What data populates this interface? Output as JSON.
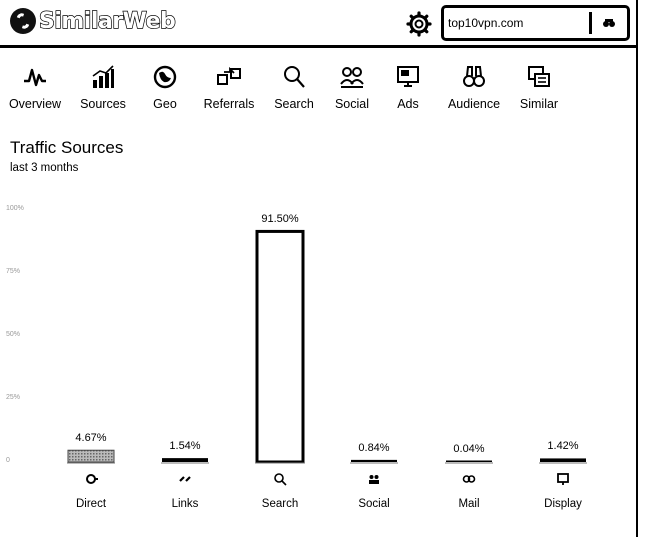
{
  "header": {
    "logo_text": "SimilarWeb",
    "search": {
      "value": "top10vpn.com"
    }
  },
  "nav": [
    {
      "label": "Overview",
      "icon": "pulse-icon"
    },
    {
      "label": "Sources",
      "icon": "bar-chart-icon"
    },
    {
      "label": "Geo",
      "icon": "globe-icon"
    },
    {
      "label": "Referrals",
      "icon": "referrals-icon"
    },
    {
      "label": "Search",
      "icon": "search-icon"
    },
    {
      "label": "Social",
      "icon": "people-icon"
    },
    {
      "label": "Ads",
      "icon": "ads-icon"
    },
    {
      "label": "Audience",
      "icon": "binoculars-icon"
    },
    {
      "label": "Similar",
      "icon": "similar-icon"
    }
  ],
  "section": {
    "title": "Traffic Sources",
    "subtitle": "last 3 months"
  },
  "chart_data": {
    "type": "bar",
    "categories": [
      "Direct",
      "Links",
      "Search",
      "Social",
      "Mail",
      "Display"
    ],
    "values": [
      4.67,
      1.54,
      91.5,
      0.84,
      0.04,
      1.42
    ],
    "data_labels": [
      "4.67%",
      "1.54%",
      "91.50%",
      "0.84%",
      "0.04%",
      "1.42%"
    ],
    "ylim": [
      0,
      100
    ],
    "y_ticks": [
      "100%",
      "75%",
      "50%",
      "25%",
      "0"
    ],
    "y_tick_values": [
      100,
      75,
      50,
      25,
      0
    ],
    "category_icons": [
      "direct-icon",
      "links-icon",
      "search-icon",
      "social-icon",
      "mail-icon",
      "display-icon"
    ]
  }
}
